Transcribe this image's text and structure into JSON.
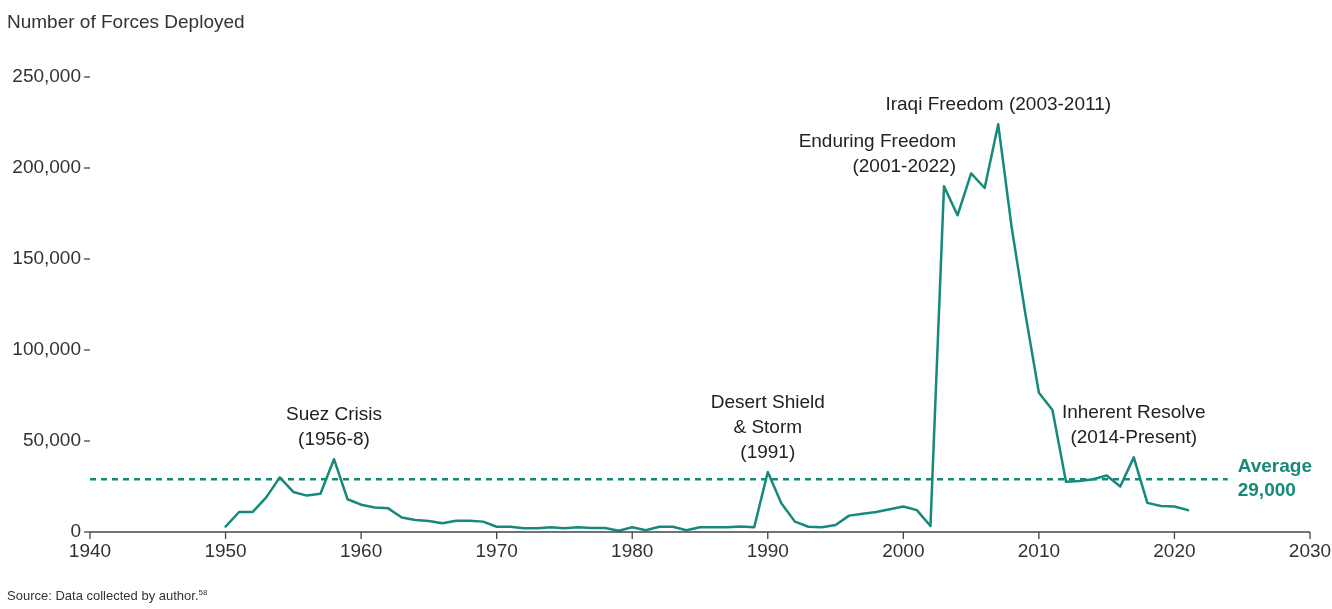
{
  "chart_data": {
    "type": "line",
    "ylabel": "Number of Forces Deployed",
    "x": [
      1950,
      1951,
      1952,
      1953,
      1954,
      1955,
      1956,
      1957,
      1958,
      1959,
      1960,
      1961,
      1962,
      1963,
      1964,
      1965,
      1966,
      1967,
      1968,
      1969,
      1970,
      1971,
      1972,
      1973,
      1974,
      1975,
      1976,
      1977,
      1978,
      1979,
      1980,
      1981,
      1982,
      1983,
      1984,
      1985,
      1986,
      1987,
      1988,
      1989,
      1990,
      1991,
      1992,
      1993,
      1994,
      1995,
      1996,
      1997,
      1998,
      1999,
      2000,
      2001,
      2002,
      2003,
      2004,
      2005,
      2006,
      2007,
      2008,
      2009,
      2010,
      2011,
      2012,
      2013,
      2014,
      2015,
      2016,
      2017,
      2018,
      2019,
      2020,
      2021
    ],
    "series": [
      {
        "color": "#16897a",
        "values": [
          3000,
          11000,
          11000,
          19000,
          30000,
          22000,
          20000,
          21000,
          40000,
          18000,
          15000,
          13500,
          13000,
          8000,
          6600,
          6000,
          4800,
          6200,
          6200,
          5700,
          2900,
          2900,
          2000,
          2000,
          2600,
          2000,
          2600,
          2200,
          2200,
          700,
          2600,
          1000,
          2900,
          2900,
          1000,
          2600,
          2600,
          2600,
          3000,
          2600,
          33000,
          15800,
          5700,
          2900,
          2600,
          3800,
          9000,
          10000,
          11000,
          12500,
          14000,
          12000,
          3300,
          190000,
          174000,
          197000,
          189000,
          224000,
          167000,
          120000,
          76500,
          67000,
          27600,
          28000,
          29000,
          31000,
          25000,
          41000,
          16000,
          14300,
          14000,
          12000
        ]
      }
    ],
    "xlim": [
      1940,
      2030
    ],
    "xticks": [
      1940,
      1950,
      1960,
      1970,
      1980,
      1990,
      2000,
      2010,
      2020,
      2030
    ],
    "ylim": [
      0,
      250000
    ],
    "yticks": [
      {
        "value": 0,
        "label": "0"
      },
      {
        "value": 50000,
        "label": "50,000"
      },
      {
        "value": 100000,
        "label": "100,000"
      },
      {
        "value": 150000,
        "label": "150,000"
      },
      {
        "value": 200000,
        "label": "200,000"
      },
      {
        "value": 250000,
        "label": "250,000"
      }
    ],
    "marker": "none",
    "line_style": "solid",
    "ref_lines": [
      {
        "axis": "y",
        "value": 29000,
        "label": "Average\n29,000",
        "color": "#16897a",
        "line_style": "dashed"
      }
    ],
    "annotations": [
      {
        "text": "Suez Crisis\n(1956-8)",
        "x": 1958,
        "y": 40000
      },
      {
        "text": "Desert Shield\n& Storm\n(1991)",
        "x": 1990,
        "y": 33000
      },
      {
        "text": "Enduring Freedom\n(2001-2022)",
        "x": 2003,
        "y": 190000
      },
      {
        "text": "Iraqi Freedom (2003-2011)",
        "x": 2007,
        "y": 224000
      },
      {
        "text": "Inherent Resolve\n(2014-Present)",
        "x": 2017,
        "y": 41000
      },
      "Source: Data collected by author.$^{58}$"
    ]
  }
}
